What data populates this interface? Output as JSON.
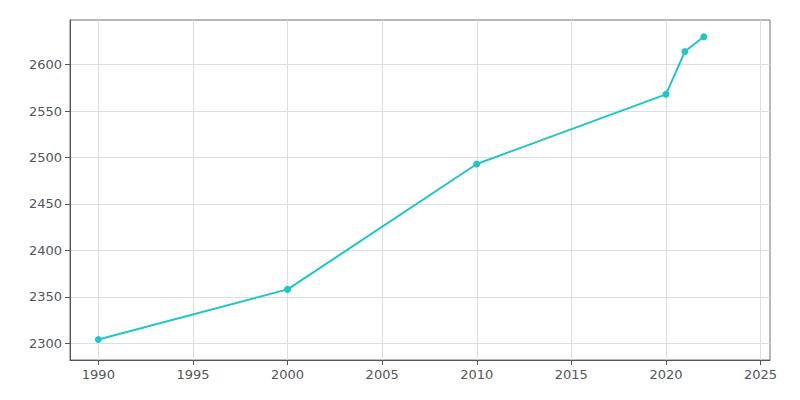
{
  "chart_data": {
    "type": "line",
    "x": [
      1990,
      2000,
      2010,
      2020,
      2021,
      2022
    ],
    "values": [
      2304,
      2358,
      2493,
      2568,
      2614,
      2630
    ],
    "color": "#20c5c5",
    "marker": "circle",
    "xlim": [
      1988.5,
      2025.5
    ],
    "ylim": [
      2282,
      2648
    ],
    "xticks": [
      1990,
      1995,
      2000,
      2005,
      2010,
      2015,
      2020,
      2025
    ],
    "yticks": [
      2300,
      2350,
      2400,
      2450,
      2500,
      2550,
      2600
    ],
    "grid": true
  }
}
